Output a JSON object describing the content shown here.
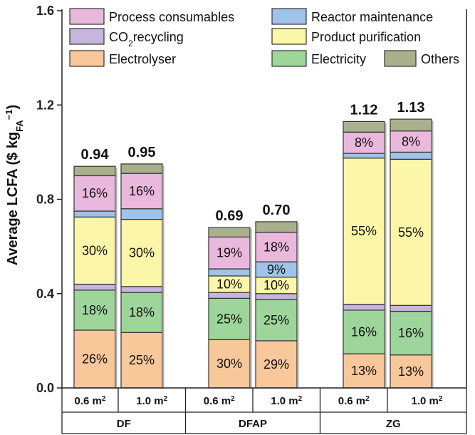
{
  "chart_data": {
    "type": "bar",
    "stacked": true,
    "ylabel": "Average LCFA ($ kg",
    "ylabel_sub": "FA",
    "ylabel_sup": "−1",
    "ylabel_close": ")",
    "ylim": [
      0,
      1.6
    ],
    "yticks": [
      0.0,
      0.4,
      0.8,
      1.2,
      1.6
    ],
    "ytick_labels": [
      "0.0",
      "0.4",
      "0.8",
      "1.2",
      "1.6"
    ],
    "categories": [
      "0.6 m2",
      "1.0 m2",
      "0.6 m2",
      "1.0 m2",
      "0.6 m2",
      "1.0 m2"
    ],
    "category_labels": [
      {
        "base": "0.6 m",
        "sup": "2"
      },
      {
        "base": "1.0 m",
        "sup": "2"
      },
      {
        "base": "0.6 m",
        "sup": "2"
      },
      {
        "base": "1.0 m",
        "sup": "2"
      },
      {
        "base": "0.6 m",
        "sup": "2"
      },
      {
        "base": "1.0 m",
        "sup": "2"
      }
    ],
    "groups": [
      {
        "name": "DF",
        "span": [
          0,
          1
        ]
      },
      {
        "name": "DFAP",
        "span": [
          2,
          3
        ]
      },
      {
        "name": "ZG",
        "span": [
          4,
          5
        ]
      }
    ],
    "totals": [
      "0.94",
      "0.95",
      "0.69",
      "0.70",
      "1.12",
      "1.13"
    ],
    "series": [
      {
        "name": "Electrolyser",
        "color": "#f8c79a",
        "values": [
          0.245,
          0.235,
          0.205,
          0.2,
          0.145,
          0.14
        ],
        "labels": [
          "26%",
          "25%",
          "30%",
          "29%",
          "13%",
          "13%"
        ]
      },
      {
        "name": "Electricity",
        "color": "#9ed59a",
        "values": [
          0.17,
          0.17,
          0.175,
          0.175,
          0.185,
          0.185
        ],
        "labels": [
          "18%",
          "18%",
          "25%",
          "25%",
          "16%",
          "16%"
        ]
      },
      {
        "name": "CO2recycling",
        "color": "#c6b5dd",
        "values": [
          0.025,
          0.025,
          0.025,
          0.025,
          0.025,
          0.025
        ],
        "labels": [
          "",
          "",
          "",
          "",
          "",
          ""
        ]
      },
      {
        "name": "Product purification",
        "color": "#fbf6a8",
        "values": [
          0.285,
          0.285,
          0.07,
          0.07,
          0.62,
          0.62
        ],
        "labels": [
          "30%",
          "30%",
          "10%",
          "10%",
          "55%",
          "55%"
        ]
      },
      {
        "name": "Reactor maintenance",
        "color": "#9fc3e9",
        "values": [
          0.025,
          0.045,
          0.03,
          0.065,
          0.02,
          0.03
        ],
        "labels": [
          "",
          "",
          "",
          "9%",
          "",
          ""
        ]
      },
      {
        "name": "Process consumables",
        "color": "#eab8dc",
        "values": [
          0.15,
          0.15,
          0.135,
          0.125,
          0.09,
          0.09
        ],
        "labels": [
          "16%",
          "16%",
          "19%",
          "18%",
          "8%",
          "8%"
        ]
      },
      {
        "name": "Others",
        "color": "#a9b18c",
        "values": [
          0.04,
          0.04,
          0.04,
          0.045,
          0.045,
          0.05
        ],
        "labels": [
          "",
          "",
          "",
          "",
          "",
          ""
        ]
      }
    ],
    "legend": {
      "placement": "top",
      "items": [
        {
          "series": "Process consumables",
          "text": "Process consumables",
          "sub": ""
        },
        {
          "series": "Reactor maintenance",
          "text": "Reactor maintenance",
          "sub": ""
        },
        {
          "series": "CO2recycling",
          "text": "CO",
          "sub": "2",
          "text_after": "recycling"
        },
        {
          "series": "Product purification",
          "text": "Product purification",
          "sub": ""
        },
        {
          "series": "Electrolyser",
          "text": "Electrolyser",
          "sub": ""
        },
        {
          "series": "Electricity",
          "text": "Electricity",
          "sub": ""
        },
        {
          "series": "Others",
          "text": "Others",
          "sub": ""
        }
      ]
    },
    "grid": false
  }
}
